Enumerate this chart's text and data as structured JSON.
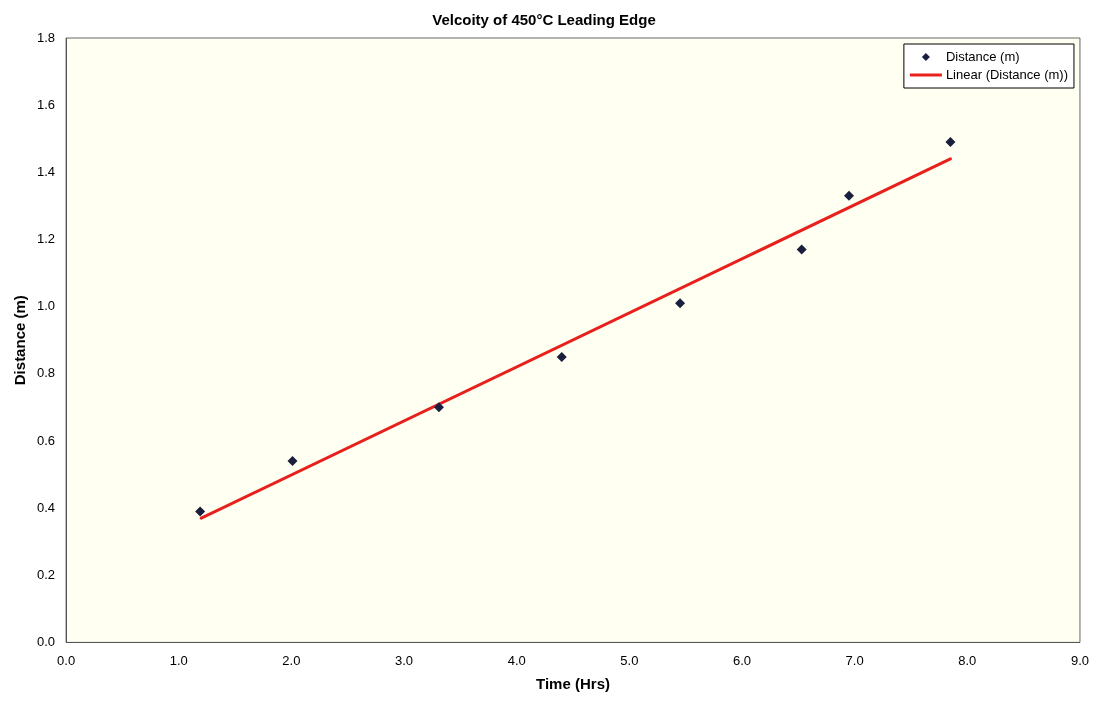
{
  "chart_data": {
    "type": "scatter",
    "title": "Velcoity of 450°C Leading Edge",
    "xlabel": "Time (Hrs)",
    "ylabel": "Distance (m)",
    "series": [
      {
        "name": "Distance (m)",
        "color": "#1a1f3d",
        "marker": "diamond",
        "x": [
          1.19,
          2.01,
          3.31,
          4.4,
          5.45,
          6.53,
          6.95,
          7.85
        ],
        "values": [
          0.39,
          0.54,
          0.7,
          0.85,
          1.01,
          1.17,
          1.33,
          1.49
        ]
      },
      {
        "name": "Linear (Distance (m))",
        "type": "line",
        "color": "#e8201c",
        "marker": "none",
        "x": [
          1.2,
          7.85
        ],
        "values": [
          0.37,
          1.44
        ]
      }
    ],
    "xlim": [
      0,
      9
    ],
    "xticks": [
      {
        "value": 0,
        "label": "0.0"
      },
      {
        "value": 1,
        "label": "1.0"
      },
      {
        "value": 2,
        "label": "2.0"
      },
      {
        "value": 3,
        "label": "3.0"
      },
      {
        "value": 4,
        "label": "4.0"
      },
      {
        "value": 5,
        "label": "5.0"
      },
      {
        "value": 6,
        "label": "6.0"
      },
      {
        "value": 7,
        "label": "7.0"
      },
      {
        "value": 8,
        "label": "8.0"
      },
      {
        "value": 9,
        "label": "9.0"
      }
    ],
    "ylim": [
      0,
      1.8
    ],
    "yticks": [
      {
        "value": 0,
        "label": "0.0"
      },
      {
        "value": 0.2,
        "label": "0.2"
      },
      {
        "value": 0.4,
        "label": "0.4"
      },
      {
        "value": 0.6,
        "label": "0.6"
      },
      {
        "value": 0.8,
        "label": "0.8"
      },
      {
        "value": 1,
        "label": "1.0"
      },
      {
        "value": 1.2,
        "label": "1.2"
      },
      {
        "value": 1.4,
        "label": "1.4"
      },
      {
        "value": 1.6,
        "label": "1.6"
      },
      {
        "value": 1.8,
        "label": "1.8"
      }
    ],
    "grid": false,
    "legend": "top right"
  }
}
